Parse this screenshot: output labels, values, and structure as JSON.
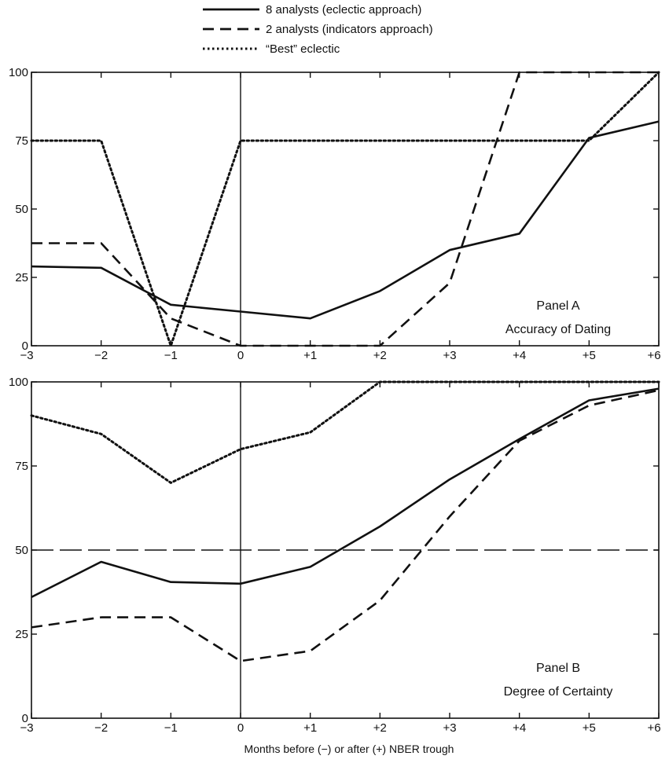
{
  "legend": [
    {
      "label": "8 analysts (eclectic approach)",
      "style": "solid"
    },
    {
      "label": "2 analysts (indicators approach)",
      "style": "dashed"
    },
    {
      "label": "“Best” eclectic",
      "style": "dotted"
    }
  ],
  "xlabel": "Months before (−) or after (+) NBER trough",
  "chart_data": [
    {
      "type": "line",
      "panel_title": "Panel A",
      "panel_subtitle": "Accuracy of Dating",
      "x": [
        -3,
        -2,
        -1,
        0,
        1,
        2,
        3,
        4,
        5,
        6
      ],
      "x_tick_labels": [
        "−3",
        "−2",
        "−1",
        "0",
        "+1",
        "+2",
        "+3",
        "+4",
        "+5",
        "+6"
      ],
      "y_ticks": [
        0,
        25,
        50,
        75,
        100
      ],
      "xlim": [
        -3,
        6
      ],
      "ylim": [
        0,
        100
      ],
      "series": [
        {
          "name": "8 analysts (eclectic approach)",
          "style": "solid",
          "values": [
            29,
            28.5,
            15,
            12.5,
            10,
            20,
            35,
            41,
            76,
            82
          ]
        },
        {
          "name": "2 analysts (indicators approach)",
          "style": "dashed",
          "values": [
            37.5,
            37.5,
            10,
            0,
            0,
            0,
            23,
            100,
            100,
            100
          ]
        },
        {
          "name": "“Best” eclectic",
          "style": "dotted",
          "values": [
            75,
            75,
            0,
            75,
            75,
            75,
            75,
            75,
            75,
            100
          ]
        }
      ]
    },
    {
      "type": "line",
      "panel_title": "Panel B",
      "panel_subtitle": "Degree of Certainty",
      "x": [
        -3,
        -2,
        -1,
        0,
        1,
        2,
        3,
        4,
        5,
        6
      ],
      "x_tick_labels": [
        "−3",
        "−2",
        "−1",
        "0",
        "+1",
        "+2",
        "+3",
        "+4",
        "+5",
        "+6"
      ],
      "y_ticks": [
        0,
        25,
        50,
        75,
        100
      ],
      "xlim": [
        -3,
        6
      ],
      "ylim": [
        0,
        100
      ],
      "reference_line": 50,
      "series": [
        {
          "name": "8 analysts (eclectic approach)",
          "style": "solid",
          "values": [
            36,
            46.5,
            40.5,
            40,
            45,
            57,
            71,
            83,
            94.5,
            98
          ]
        },
        {
          "name": "2 analysts (indicators approach)",
          "style": "dashed",
          "values": [
            27,
            30,
            30,
            17,
            20,
            35,
            60,
            82.5,
            93,
            97.5
          ]
        },
        {
          "name": "“Best” eclectic",
          "style": "dotted",
          "values": [
            90,
            84.5,
            70,
            80,
            85,
            100,
            100,
            100,
            100,
            100
          ]
        }
      ]
    }
  ]
}
